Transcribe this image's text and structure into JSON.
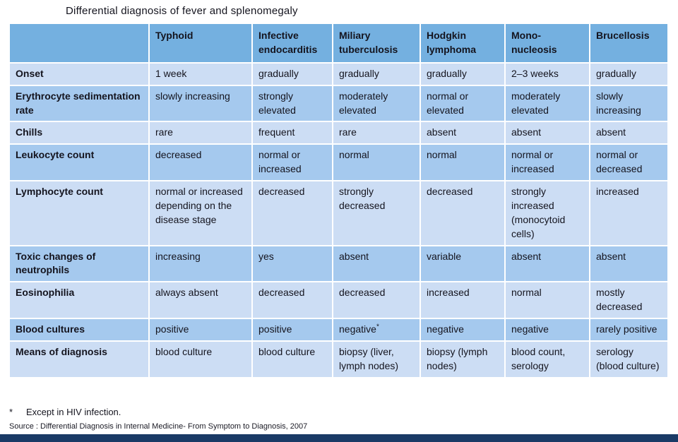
{
  "page": {
    "title": "Differential diagnosis of fever and splenomegaly",
    "footnote_marker": "*",
    "footnote_text": "Except in HIV infection.",
    "source": "Source : Differential Diagnosis in Internal Medicine- From Symptom to Diagnosis, 2007"
  },
  "colors": {
    "header_bg": "#74b0e0",
    "row_light_bg": "#ccddf4",
    "row_dark_bg": "#a5c9ee",
    "bottom_bar": "#1a3a66",
    "text": "#14141e"
  },
  "table": {
    "columns": [
      "",
      "Typhoid",
      "Infective\nendocarditis",
      "Miliary\ntuberculosis",
      "Hodgkin\nlymphoma",
      "Mono-\nnucleosis",
      "Brucellosis"
    ],
    "rows": [
      {
        "label": "Onset",
        "cells": [
          "1 week",
          "gradually",
          "gradually",
          "gradually",
          "2–3 weeks",
          "gradually"
        ]
      },
      {
        "label": "Erythrocyte sedimentation rate",
        "cells": [
          "slowly increasing",
          "strongly elevated",
          "moderately elevated",
          "normal or elevated",
          "moderately elevated",
          "slowly increasing"
        ]
      },
      {
        "label": "Chills",
        "cells": [
          "rare",
          "frequent",
          "rare",
          "absent",
          "absent",
          "absent"
        ]
      },
      {
        "label": "Leukocyte count",
        "cells": [
          "decreased",
          "normal or increased",
          "normal",
          "normal",
          "normal or increased",
          "normal or decreased"
        ]
      },
      {
        "label": "Lymphocyte count",
        "cells": [
          "normal or increased depending on the disease stage",
          "decreased",
          "strongly decreased",
          "decreased",
          "strongly increased (monocytoid cells)",
          "increased"
        ]
      },
      {
        "label": "Toxic changes of neutrophils",
        "cells": [
          "increasing",
          "yes",
          "absent",
          "variable",
          "absent",
          "absent"
        ]
      },
      {
        "label": "Eosinophilia",
        "cells": [
          "always absent",
          "decreased",
          "decreased",
          "increased",
          "normal",
          "mostly decreased"
        ]
      },
      {
        "label": "Blood cultures",
        "cells": [
          "positive",
          "positive",
          "negative*",
          "negative",
          "negative",
          "rarely positive"
        ]
      },
      {
        "label": "Means of diagnosis",
        "cells": [
          "blood culture",
          "blood culture",
          "biopsy (liver, lymph nodes)",
          "biopsy (lymph nodes)",
          "blood count, serology",
          "serology (blood culture)"
        ]
      }
    ]
  }
}
